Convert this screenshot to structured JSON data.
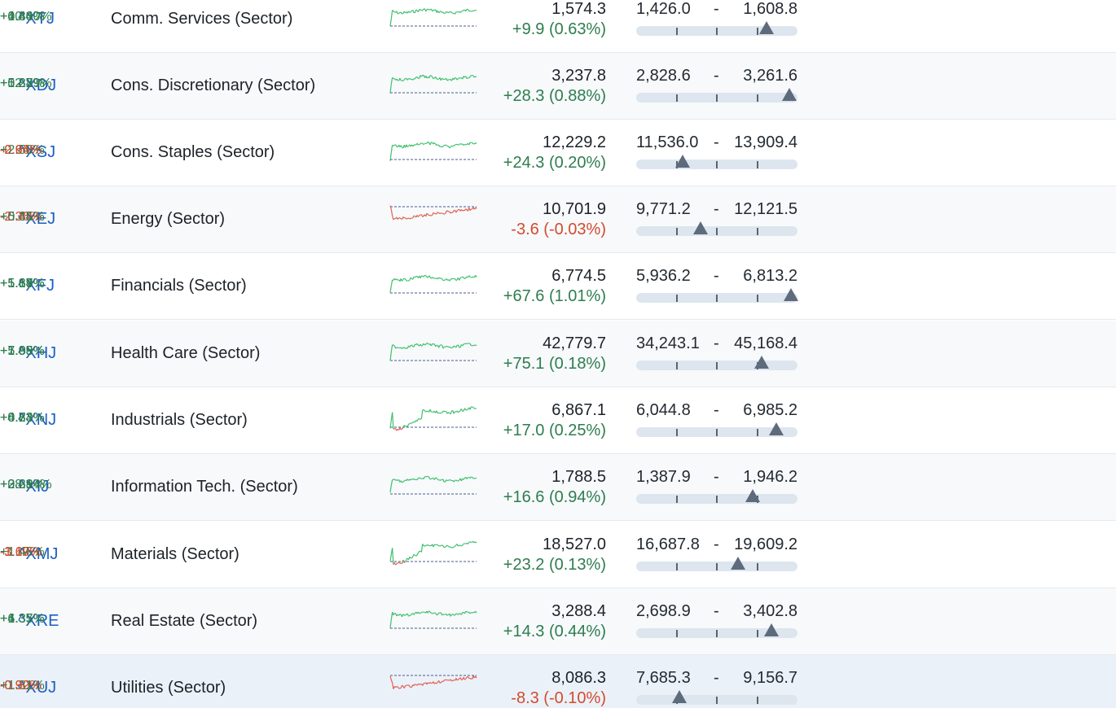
{
  "colors": {
    "positive": "#2e7d4f",
    "negative": "#d24b2e",
    "link": "#1a5fc4",
    "range_marker": "#5d6b7c"
  },
  "rows": [
    {
      "symbol": "^XTJ",
      "name": "Comm. Services (Sector)",
      "price": "1,574.3",
      "change": "+9.9 (0.63%)",
      "range_low": "1,426.0",
      "range_high": "1,608.8",
      "range_position": 0.81,
      "pct1": "+0.34%",
      "pct2": "+4.40%",
      "pct3": "+10.40%",
      "trend": "up",
      "spark_color": "green"
    },
    {
      "symbol": "^XDJ",
      "name": "Cons. Discretionary (Sector)",
      "price": "3,237.8",
      "change": "+28.3 (0.88%)",
      "range_low": "2,828.6",
      "range_high": "3,261.6",
      "range_position": 0.95,
      "pct1": "+0.82%",
      "pct2": "+5.28%",
      "pct3": "+12.79%",
      "trend": "up",
      "spark_color": "green"
    },
    {
      "symbol": "^XSJ",
      "name": "Cons. Staples (Sector)",
      "price": "12,229.2",
      "change": "+24.3 (0.20%)",
      "range_low": "11,536.0",
      "range_high": "13,909.4",
      "range_position": 0.29,
      "pct1": "-0.94%",
      "pct2": "+2.50%",
      "pct3": "-2.66%",
      "trend": "up",
      "spark_color": "green"
    },
    {
      "symbol": "^XEJ",
      "name": "Energy (Sector)",
      "price": "10,701.9",
      "change": "-3.6 (-0.03%)",
      "range_low": "9,771.2",
      "range_high": "12,121.5",
      "range_position": 0.4,
      "pct1": "+0.35%",
      "pct2": "+5.44%",
      "pct3": "-2.36%",
      "trend": "down",
      "spark_color": "red"
    },
    {
      "symbol": "^XFJ",
      "name": "Financials (Sector)",
      "price": "6,774.5",
      "change": "+67.6 (1.01%)",
      "range_low": "5,936.2",
      "range_high": "6,813.2",
      "range_position": 0.96,
      "pct1": "+1.19%",
      "pct2": "+5.64%",
      "pct3": "+5.87%",
      "trend": "up",
      "spark_color": "green"
    },
    {
      "symbol": "^XHJ",
      "name": "Health Care (Sector)",
      "price": "42,779.7",
      "change": "+75.1 (0.18%)",
      "range_low": "34,243.1",
      "range_high": "45,168.4",
      "range_position": 0.78,
      "pct1": "+1.85%",
      "pct2": "+7.99%",
      "pct3": "+5.08%",
      "trend": "up",
      "spark_color": "green"
    },
    {
      "symbol": "^XNJ",
      "name": "Industrials (Sector)",
      "price": "6,867.1",
      "change": "+17.0 (0.25%)",
      "range_low": "6,044.8",
      "range_high": "6,985.2",
      "range_position": 0.87,
      "pct1": "+0.73%",
      "pct2": "+4.24%",
      "pct3": "+8.83%",
      "trend": "up",
      "spark_color": "mixed"
    },
    {
      "symbol": "^XIJ",
      "name": "Information Tech. (Sector)",
      "price": "1,788.5",
      "change": "+16.6 (0.94%)",
      "range_low": "1,387.9",
      "range_high": "1,946.2",
      "range_position": 0.72,
      "pct1": "+0.21%",
      "pct2": "+3.69%",
      "pct3": "+28.84%",
      "trend": "up",
      "spark_color": "green"
    },
    {
      "symbol": "^XMJ",
      "name": "Materials (Sector)",
      "price": "18,527.0",
      "change": "+23.2 (0.13%)",
      "range_low": "16,687.8",
      "range_high": "19,609.2",
      "range_position": 0.63,
      "pct1": "-3.67%",
      "pct2": "+1.46%",
      "pct3": "-1.19%",
      "trend": "up",
      "spark_color": "mixed"
    },
    {
      "symbol": "^XRE",
      "name": "Real Estate (Sector)",
      "price": "3,288.4",
      "change": "+14.3 (0.44%)",
      "range_low": "2,698.9",
      "range_high": "3,402.8",
      "range_position": 0.84,
      "pct1": "+1.35%",
      "pct2": "+4.35%",
      "pct3": "+6.37%",
      "trend": "up",
      "spark_color": "green"
    },
    {
      "symbol": "^XUJ",
      "name": "Utilities (Sector)",
      "price": "8,086.3",
      "change": "-8.3 (-0.10%)",
      "range_low": "7,685.3",
      "range_high": "9,156.7",
      "range_position": 0.27,
      "pct1": "-0.92%",
      "pct2": "+1.31%",
      "pct3": "-0.30%",
      "trend": "down",
      "spark_color": "mixed"
    }
  ]
}
